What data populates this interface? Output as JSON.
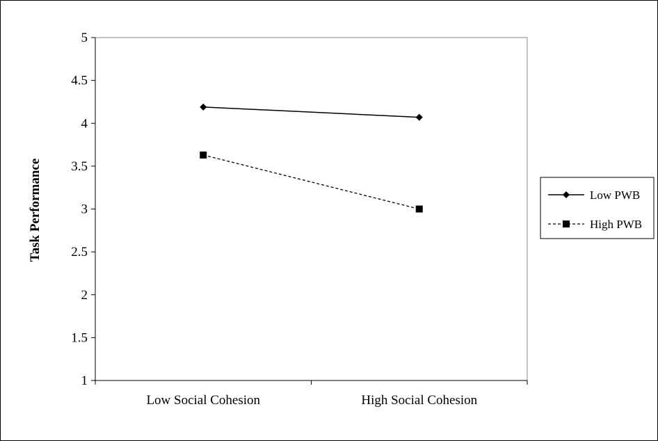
{
  "chart_data": {
    "type": "line",
    "title": "",
    "xlabel": "",
    "ylabel": "Task Performance",
    "categories": [
      "Low Social Cohesion",
      "High Social Cohesion"
    ],
    "ylim": [
      1,
      5
    ],
    "yticks": [
      "1",
      "1.5",
      "2",
      "2.5",
      "3",
      "3.5",
      "4",
      "4.5",
      "5"
    ],
    "grid": false,
    "legend_position": "right",
    "series": [
      {
        "name": "Low PWB",
        "values": [
          4.19,
          4.07
        ],
        "marker": "diamond",
        "line_style": "solid",
        "color": "#000000"
      },
      {
        "name": "High PWB",
        "values": [
          3.63,
          3.0
        ],
        "marker": "square",
        "line_style": "dashed",
        "color": "#000000"
      }
    ]
  }
}
